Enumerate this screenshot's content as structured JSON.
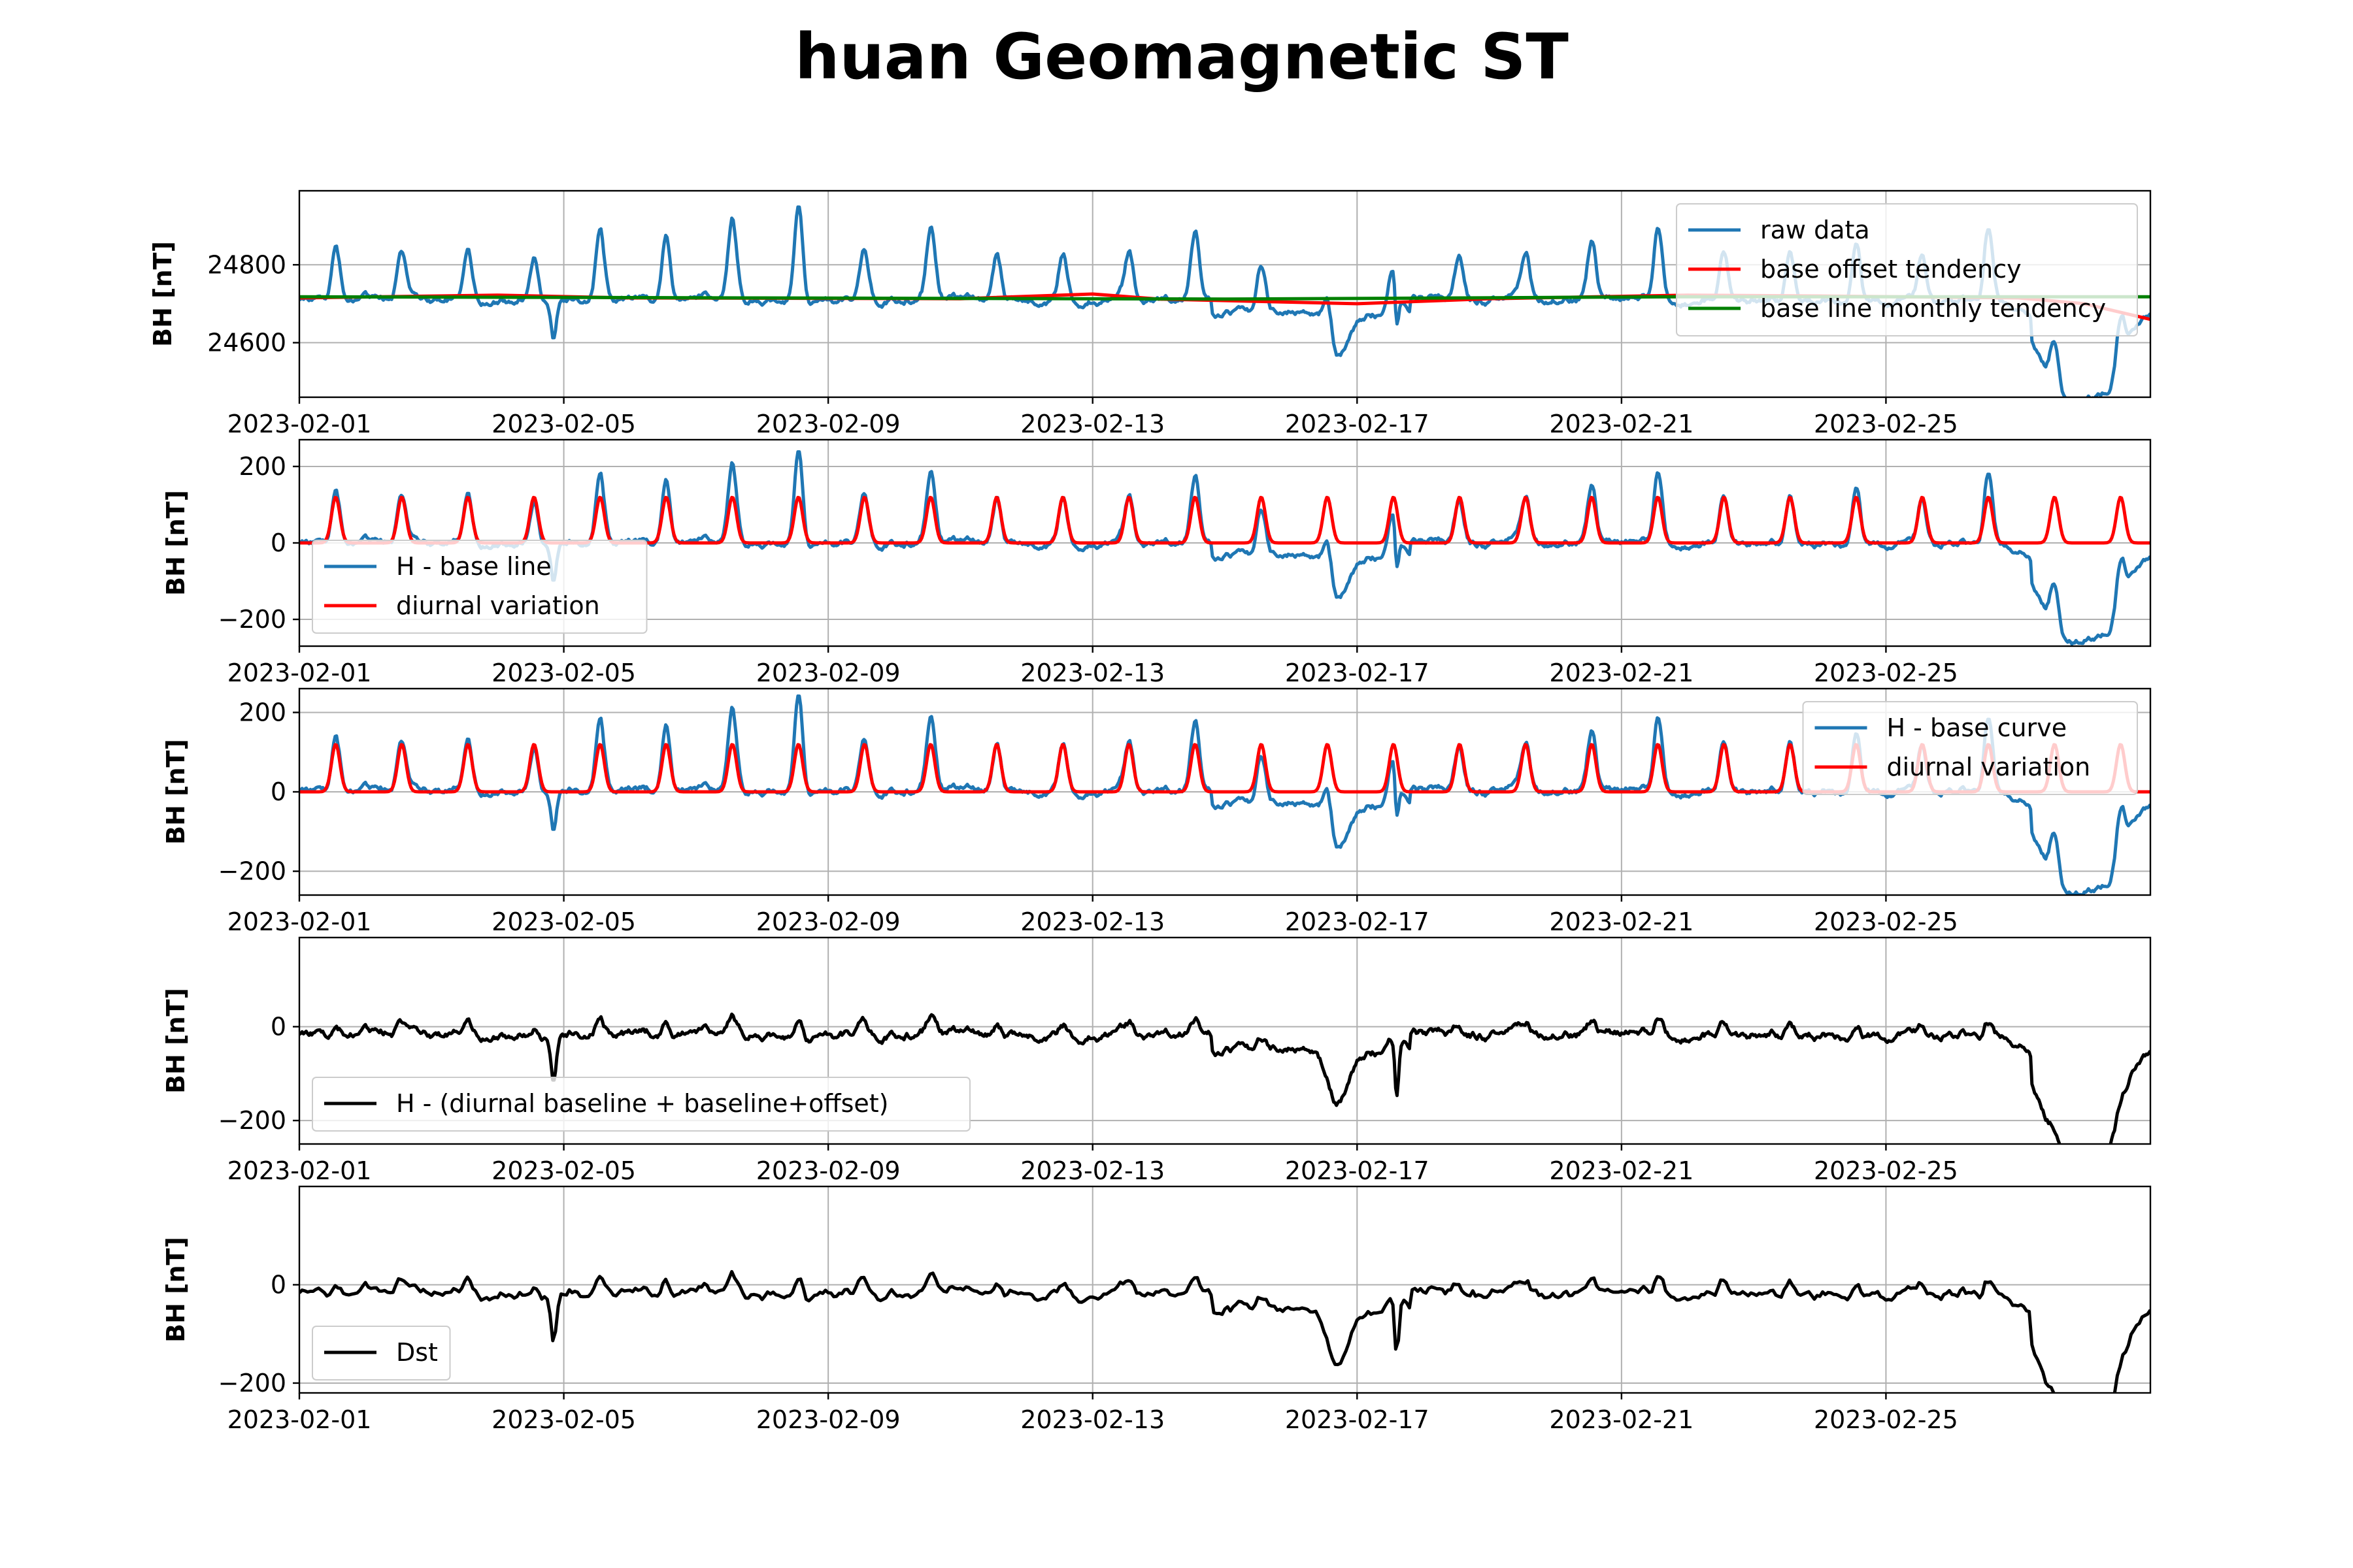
{
  "title": "huan Geomagnetic ST",
  "colors": {
    "blue": "#1f77b4",
    "red": "#ff0000",
    "green": "#008000",
    "black": "#000000"
  },
  "chart_data": [
    {
      "type": "line",
      "ylabel": "BH [nT]",
      "x_range": [
        "2023-02-01",
        "2023-02-29"
      ],
      "ylim": [
        24460,
        24990
      ],
      "yticks": [
        24600,
        24800
      ],
      "xticks": [
        "2023-02-01",
        "2023-02-05",
        "2023-02-09",
        "2023-02-13",
        "2023-02-17",
        "2023-02-21",
        "2023-02-25"
      ],
      "grid": true,
      "legend_position": "top-right",
      "series": [
        {
          "name": "raw data",
          "color": "#1f77b4",
          "kind": "raw",
          "base": 24710,
          "diurnal": 1.0,
          "scale": 1.0,
          "offset": 0
        },
        {
          "name": "base offset tendency",
          "color": "#ff0000",
          "kind": "tendency",
          "points": [
            [
              "2023-02-01",
              24715
            ],
            [
              "2023-02-04",
              24722
            ],
            [
              "2023-02-06",
              24715
            ],
            [
              "2023-02-11",
              24713
            ],
            [
              "2023-02-13",
              24725
            ],
            [
              "2023-02-14",
              24712
            ],
            [
              "2023-02-17",
              24700
            ],
            [
              "2023-02-19",
              24713
            ],
            [
              "2023-02-22",
              24722
            ],
            [
              "2023-02-24",
              24720
            ],
            [
              "2023-02-27",
              24715
            ],
            [
              "2023-02-28",
              24700
            ],
            [
              "2023-02-29",
              24660
            ]
          ]
        },
        {
          "name": "base line monthly tendency",
          "color": "#008000",
          "kind": "tendency",
          "points": [
            [
              "2023-02-01",
              24718
            ],
            [
              "2023-02-08",
              24715
            ],
            [
              "2023-02-15",
              24712
            ],
            [
              "2023-02-22",
              24718
            ],
            [
              "2023-02-29",
              24718
            ]
          ]
        }
      ]
    },
    {
      "type": "line",
      "ylabel": "BH [nT]",
      "x_range": [
        "2023-02-01",
        "2023-02-29"
      ],
      "ylim": [
        -270,
        270
      ],
      "yticks": [
        -200,
        0,
        200
      ],
      "xticks": [
        "2023-02-01",
        "2023-02-05",
        "2023-02-09",
        "2023-02-13",
        "2023-02-17",
        "2023-02-21",
        "2023-02-25"
      ],
      "grid": true,
      "legend_position": "lower-left",
      "series": [
        {
          "name": "H - base line",
          "color": "#1f77b4",
          "kind": "raw",
          "base": 0,
          "diurnal": 1.0,
          "scale": 1.0,
          "offset": 0
        },
        {
          "name": "diurnal variation",
          "color": "#ff0000",
          "kind": "diurnal",
          "amplitude": 120
        }
      ]
    },
    {
      "type": "line",
      "ylabel": "BH [nT]",
      "x_range": [
        "2023-02-01",
        "2023-02-29"
      ],
      "ylim": [
        -260,
        260
      ],
      "yticks": [
        -200,
        0,
        200
      ],
      "xticks": [
        "2023-02-01",
        "2023-02-05",
        "2023-02-09",
        "2023-02-13",
        "2023-02-17",
        "2023-02-21",
        "2023-02-25"
      ],
      "grid": true,
      "legend_position": "upper-right",
      "series": [
        {
          "name": "H - base curve",
          "color": "#1f77b4",
          "kind": "raw",
          "base": 0,
          "diurnal": 1.0,
          "scale": 1.0,
          "offset": 3
        },
        {
          "name": "diurnal variation",
          "color": "#ff0000",
          "kind": "diurnal",
          "amplitude": 120
        }
      ]
    },
    {
      "type": "line",
      "ylabel": "BH [nT]",
      "x_range": [
        "2023-02-01",
        "2023-02-29"
      ],
      "ylim": [
        -250,
        190
      ],
      "yticks": [
        -200,
        0
      ],
      "xticks": [
        "2023-02-01",
        "2023-02-05",
        "2023-02-09",
        "2023-02-13",
        "2023-02-17",
        "2023-02-21",
        "2023-02-25"
      ],
      "grid": true,
      "legend_position": "lower-left",
      "series": [
        {
          "name": "H - (diurnal baseline + baseline+offset)",
          "color": "#000000",
          "kind": "raw",
          "base": 0,
          "diurnal": 0.18,
          "scale": 1.0,
          "offset": 0
        }
      ]
    },
    {
      "type": "line",
      "ylabel": "BH [nT]",
      "x_range": [
        "2023-02-01",
        "2023-02-29"
      ],
      "ylim": [
        -220,
        200
      ],
      "yticks": [
        -200,
        0
      ],
      "xticks": [
        "2023-02-01",
        "2023-02-05",
        "2023-02-09",
        "2023-02-13",
        "2023-02-17",
        "2023-02-21",
        "2023-02-25"
      ],
      "grid": true,
      "legend_position": "lower-left",
      "series": [
        {
          "name": "Dst",
          "color": "#000000",
          "kind": "hourly",
          "base": 0,
          "diurnal": 0.18,
          "scale": 1.0,
          "offset": 0
        }
      ]
    }
  ]
}
